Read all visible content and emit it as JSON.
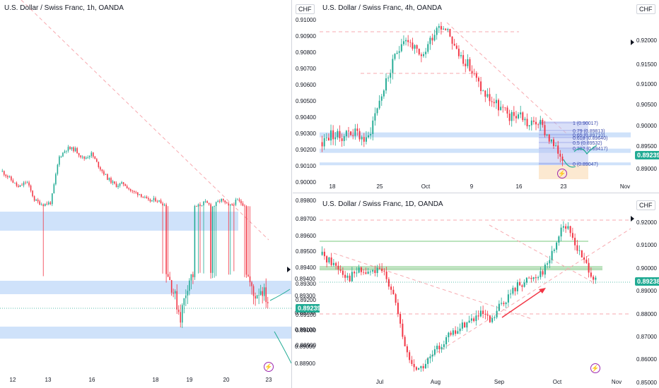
{
  "colors": {
    "up": "#22ab94",
    "down": "#f23645",
    "zone": "#cfe2fa",
    "last": "#22ab94",
    "fibBox": "#b9c4f2",
    "dashed": "#f7a9af"
  },
  "panes": {
    "h1": {
      "title": "U.S. Dollar / Swiss Franc, 1h, OANDA",
      "currency": "",
      "last_price": "0.89239",
      "y_ticks": [
        "0.89400",
        "0.89300",
        "0.89200",
        "0.89100",
        "0.89000",
        "0.88900"
      ],
      "x_ticks": [
        "12",
        "13",
        "16",
        "18",
        "19",
        "20",
        "23"
      ]
    },
    "h4": {
      "title": "U.S. Dollar / Swiss Franc, 4h, OANDA",
      "currency": "CHF",
      "last_price": "0.89239",
      "y_ticks": [
        "0.91000",
        "0.90900",
        "0.90800",
        "0.90700",
        "0.90600",
        "0.90500",
        "0.90400",
        "0.90300",
        "0.90200",
        "0.90100",
        "0.90000"
      ],
      "right_ticks": [
        "0.92000",
        "0.91500",
        "0.91000",
        "0.90500",
        "0.90000",
        "0.89500",
        "0.89000"
      ],
      "right_currency": "CHF",
      "x_ticks": [
        "18",
        "25",
        "Oct",
        "9",
        "16",
        "23",
        "Nov"
      ],
      "fib_levels": [
        "1 (0.90017)",
        "0.79 (0.89813)",
        "0.65 (0.89710)",
        "0.618 (0.89640)",
        "0.5 (0.89532)",
        "0.382 (0.89417)",
        "0 (0.89047)"
      ]
    },
    "d1": {
      "title": "U.S. Dollar / Swiss Franc, 1D, OANDA",
      "currency": "CHF",
      "last_price": "0.89238",
      "left_ticks": [
        "0.89800",
        "0.89700",
        "0.89600",
        "0.89500",
        "0.89400",
        "0.89300",
        "0.89200",
        "0.89100",
        "0.89000",
        "0.88900"
      ],
      "y_ticks": [
        "0.92000",
        "0.91000",
        "0.90000",
        "0.89000",
        "0.88000",
        "0.87000",
        "0.86000",
        "0.85000"
      ],
      "x_ticks": [
        "Jul",
        "Aug",
        "Sep",
        "Oct",
        "Nov"
      ]
    }
  },
  "chart_data": [
    {
      "type": "candlestick",
      "title": "U.S. Dollar / Swiss Franc, 1h, OANDA",
      "timeframe": "1h",
      "x_ticks": [
        "12",
        "13",
        "16",
        "18",
        "19",
        "20",
        "23"
      ],
      "y_ticks": [
        0.894,
        0.893,
        0.892,
        0.891,
        0.89,
        0.889
      ],
      "last_price": 0.89239,
      "close_path": [
        0.9028,
        0.901,
        0.899,
        0.9005,
        0.896,
        0.895,
        0.8955,
        0.9062,
        0.9083,
        0.908,
        0.9058,
        0.907,
        0.9038,
        0.9012,
        0.8995,
        0.9,
        0.898,
        0.8975,
        0.8958,
        0.8962,
        0.895,
        0.8935,
        0.8918,
        0.894,
        0.8945,
        0.8955,
        0.8945,
        0.8962,
        0.8944,
        0.896,
        0.8948,
        0.893,
        0.8935,
        0.8925
      ],
      "zones": [
        [
          0.895,
          0.8943
        ],
        [
          0.8935,
          0.893
        ],
        [
          0.8917,
          0.8912
        ]
      ]
    },
    {
      "type": "candlestick",
      "title": "U.S. Dollar / Swiss Franc, 4h, OANDA",
      "timeframe": "4h",
      "x_ticks": [
        "18",
        "25",
        "Oct",
        "9",
        "16",
        "23",
        "Nov"
      ],
      "y_ticks": [
        0.91,
        0.909,
        0.908,
        0.907,
        0.906,
        0.905,
        0.904,
        0.903,
        0.902,
        0.901,
        0.9
      ],
      "last_price": 0.89239,
      "close_path": [
        0.9025,
        0.903,
        0.9028,
        0.9032,
        0.903,
        0.9025,
        0.9045,
        0.906,
        0.9075,
        0.909,
        0.9085,
        0.9075,
        0.9088,
        0.9098,
        0.9095,
        0.908,
        0.9075,
        0.9065,
        0.9055,
        0.905,
        0.9045,
        0.904,
        0.9043,
        0.9035,
        0.9038,
        0.903,
        0.902,
        0.9015
      ],
      "fib_levels": [
        {
          "ratio": "1",
          "price": 0.90017
        },
        {
          "ratio": "0.79",
          "price": 0.89813
        },
        {
          "ratio": "0.65",
          "price": 0.8971
        },
        {
          "ratio": "0.618",
          "price": 0.8964
        },
        {
          "ratio": "0.5",
          "price": 0.89532
        },
        {
          "ratio": "0.382",
          "price": 0.89417
        },
        {
          "ratio": "0",
          "price": 0.89047
        }
      ],
      "zones": [
        [
          0.9031,
          0.9028
        ],
        [
          0.9021,
          0.9019
        ],
        [
          0.9013,
          0.9012
        ]
      ]
    },
    {
      "type": "candlestick",
      "title": "U.S. Dollar / Swiss Franc, 1D, OANDA",
      "timeframe": "1D",
      "x_ticks": [
        "Jul",
        "Aug",
        "Sep",
        "Oct",
        "Nov"
      ],
      "y_ticks": [
        0.92,
        0.91,
        0.9,
        0.89,
        0.88,
        0.87,
        0.86,
        0.85
      ],
      "last_price": 0.89238,
      "close_path": [
        0.906,
        0.903,
        0.9,
        0.896,
        0.899,
        0.898,
        0.899,
        0.898,
        0.89,
        0.87,
        0.858,
        0.856,
        0.86,
        0.865,
        0.87,
        0.872,
        0.876,
        0.878,
        0.88,
        0.876,
        0.884,
        0.888,
        0.893,
        0.895,
        0.897,
        0.9,
        0.908,
        0.92,
        0.915,
        0.906,
        0.9,
        0.892
      ],
      "zones": [
        [
          0.9005,
          0.8995
        ]
      ]
    }
  ]
}
